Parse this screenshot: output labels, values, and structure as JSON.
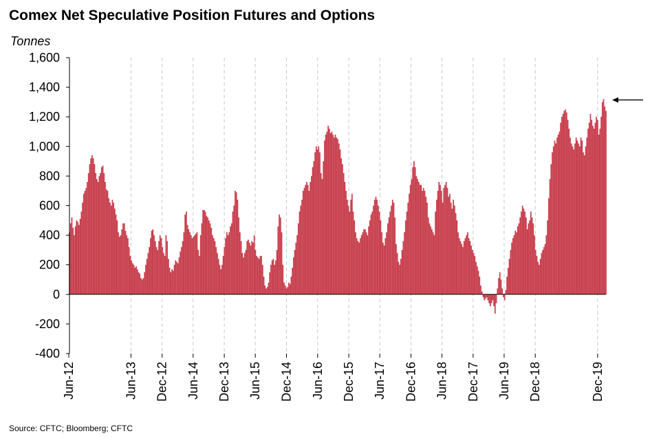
{
  "chart_data": {
    "type": "bar",
    "title": "Comex Net Speculative Position Futures and Options",
    "ylabel": "Tonnes",
    "xlabel": "",
    "ylim": [
      -400,
      1600
    ],
    "yticks": [
      "-400",
      "-200",
      "0",
      "200",
      "400",
      "600",
      "800",
      "1,000",
      "1,200",
      "1,400",
      "1,600"
    ],
    "xticks": [
      "Jun-12",
      "Dec-12",
      "Jun-13",
      "Dec-13",
      "Jun-14",
      "Dec-14",
      "Jun-15",
      "Dec-15",
      "Jun-16",
      "Dec-16",
      "Jun-17",
      "Dec-17",
      "Jun-18",
      "Dec-18",
      "Jun-19",
      "Dec-19"
    ],
    "grid": "vertical dashed at x ticks",
    "annotation": "arrow pointing at latest value",
    "bar_color": "#c8414f",
    "series": [
      {
        "frequency": "weekly",
        "start": "2012-06-05",
        "values": [
          420,
          480,
          520,
          450,
          400,
          460,
          500,
          490,
          470,
          510,
          560,
          620,
          680,
          700,
          720,
          760,
          820,
          880,
          920,
          940,
          920,
          880,
          820,
          780,
          760,
          800,
          820,
          860,
          870,
          820,
          760,
          710,
          700,
          650,
          620,
          600,
          640,
          620,
          580,
          540,
          500,
          420,
          390,
          400,
          440,
          480,
          480,
          430,
          400,
          380,
          320,
          260,
          230,
          210,
          200,
          180,
          190,
          170,
          150,
          140,
          110,
          100,
          110,
          150,
          200,
          240,
          280,
          320,
          380,
          430,
          440,
          400,
          360,
          320,
          300,
          360,
          400,
          380,
          320,
          280,
          260,
          400,
          360,
          240,
          180,
          150,
          170,
          160,
          200,
          230,
          220,
          210,
          250,
          290,
          320,
          360,
          420,
          540,
          560,
          470,
          440,
          420,
          400,
          380,
          390,
          400,
          410,
          420,
          300,
          260,
          400,
          480,
          570,
          570,
          560,
          530,
          520,
          500,
          480,
          450,
          400,
          380,
          360,
          320,
          280,
          240,
          200,
          170,
          200,
          260,
          320,
          380,
          420,
          400,
          420,
          460,
          480,
          560,
          600,
          700,
          690,
          640,
          520,
          420,
          360,
          280,
          250,
          280,
          300,
          360,
          370,
          350,
          330,
          360,
          350,
          400,
          300,
          260,
          250,
          240,
          260,
          260,
          200,
          120,
          60,
          40,
          50,
          80,
          150,
          200,
          230,
          240,
          200,
          230,
          300,
          460,
          540,
          520,
          420,
          200,
          80,
          60,
          40,
          50,
          80,
          70,
          120,
          180,
          250,
          300,
          350,
          400,
          480,
          560,
          600,
          640,
          700,
          720,
          740,
          760,
          740,
          700,
          760,
          800,
          860,
          900,
          960,
          1000,
          980,
          1000,
          960,
          820,
          780,
          900,
          1040,
          1080,
          1100,
          1140,
          1120,
          1090,
          1100,
          1080,
          1060,
          1080,
          1060,
          1050,
          1020,
          980,
          920,
          880,
          820,
          760,
          700,
          640,
          600,
          560,
          640,
          680,
          560,
          500,
          420,
          380,
          360,
          350,
          380,
          400,
          420,
          440,
          440,
          420,
          400,
          460,
          500,
          540,
          560,
          600,
          640,
          660,
          640,
          600,
          560,
          500,
          420,
          350,
          330,
          380,
          420,
          480,
          520,
          560,
          600,
          640,
          620,
          520,
          340,
          280,
          220,
          200,
          240,
          300,
          360,
          420,
          500,
          560,
          620,
          680,
          740,
          780,
          860,
          900,
          860,
          800,
          780,
          760,
          740,
          740,
          700,
          720,
          700,
          660,
          620,
          520,
          480,
          460,
          440,
          420,
          400,
          560,
          640,
          700,
          760,
          740,
          700,
          620,
          720,
          740,
          760,
          720,
          660,
          680,
          620,
          580,
          640,
          600,
          550,
          500,
          420,
          380,
          360,
          340,
          320,
          360,
          380,
          400,
          420,
          380,
          360,
          330,
          300,
          280,
          260,
          220,
          190,
          160,
          120,
          60,
          20,
          -20,
          -40,
          -30,
          -20,
          -40,
          -60,
          -80,
          -60,
          -40,
          -80,
          -130,
          -60,
          40,
          110,
          150,
          100,
          40,
          -20,
          -40,
          30,
          120,
          180,
          240,
          300,
          350,
          380,
          400,
          430,
          420,
          460,
          480,
          520,
          560,
          600,
          580,
          560,
          520,
          440,
          480,
          500,
          560,
          520,
          480,
          400,
          300,
          260,
          220,
          200,
          240,
          280,
          300,
          320,
          340,
          400,
          500,
          650,
          780,
          880,
          960,
          1000,
          1040,
          1020,
          1060,
          1080,
          1100,
          1160,
          1200,
          1220,
          1240,
          1250,
          1230,
          1180,
          1120,
          1060,
          1020,
          1000,
          980,
          1020,
          1060,
          1040,
          1020,
          1000,
          1060,
          1040,
          960,
          940,
          1000,
          1060,
          1120,
          1160,
          1220,
          1180,
          1140,
          1120,
          1160,
          1200,
          1180,
          1080,
          1120,
          1200,
          1300,
          1320,
          1270,
          1240
        ]
      }
    ]
  },
  "source": "Source: CFTC; Bloomberg; CFTC"
}
